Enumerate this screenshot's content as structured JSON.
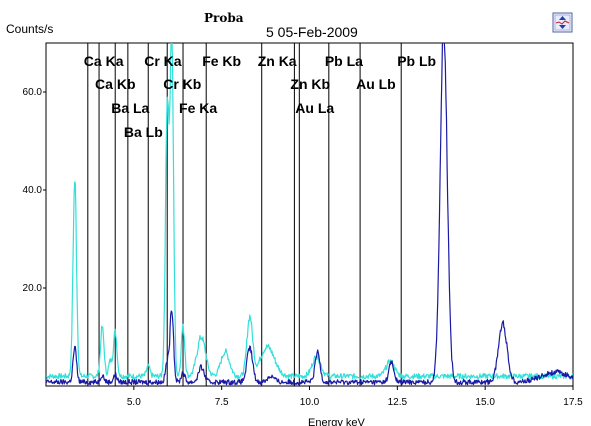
{
  "chart_data": {
    "type": "line",
    "title": "Proba",
    "subtitle": "5 05-Feb-2009",
    "ylabel": "Counts/s",
    "xlabel": "Energy keV",
    "xlim": [
      2.5,
      17.5
    ],
    "ylim": [
      0,
      70
    ],
    "x_ticks": [
      "5.0",
      "7.5",
      "10.0",
      "12.5",
      "15.0",
      "17.5"
    ],
    "x_tick_values": [
      5.0,
      7.5,
      10.0,
      12.5,
      15.0,
      17.5
    ],
    "y_ticks": [
      "20.0",
      "40.0",
      "60.0"
    ],
    "y_tick_values": [
      20,
      40,
      60
    ],
    "grid": false,
    "series": [
      {
        "color": "#33e0d8",
        "baseline": 2.0,
        "peaks": [
          {
            "x": 3.32,
            "height": 40,
            "width": 0.05
          },
          {
            "x": 4.1,
            "height": 10,
            "width": 0.05
          },
          {
            "x": 4.33,
            "height": 3,
            "width": 0.05
          },
          {
            "x": 4.47,
            "height": 9,
            "width": 0.05
          },
          {
            "x": 5.41,
            "height": 2,
            "width": 0.05
          },
          {
            "x": 5.95,
            "height": 55,
            "width": 0.05
          },
          {
            "x": 6.08,
            "height": 68,
            "width": 0.05
          },
          {
            "x": 6.4,
            "height": 10,
            "width": 0.05
          },
          {
            "x": 6.92,
            "height": 8,
            "width": 0.12
          },
          {
            "x": 7.6,
            "height": 5,
            "width": 0.12
          },
          {
            "x": 8.3,
            "height": 12,
            "width": 0.08
          },
          {
            "x": 8.8,
            "height": 6,
            "width": 0.2
          },
          {
            "x": 10.2,
            "height": 4,
            "width": 0.12
          },
          {
            "x": 12.3,
            "height": 3,
            "width": 0.12
          }
        ]
      },
      {
        "color": "#1a1aa6",
        "baseline": 0.8,
        "peaks": [
          {
            "x": 3.32,
            "height": 7,
            "width": 0.05
          },
          {
            "x": 4.1,
            "height": 1.5,
            "width": 0.05
          },
          {
            "x": 4.47,
            "height": 1.5,
            "width": 0.05
          },
          {
            "x": 5.95,
            "height": 4,
            "width": 0.05
          },
          {
            "x": 6.08,
            "height": 15,
            "width": 0.05
          },
          {
            "x": 6.4,
            "height": 2,
            "width": 0.05
          },
          {
            "x": 6.92,
            "height": 3,
            "width": 0.08
          },
          {
            "x": 8.3,
            "height": 7,
            "width": 0.08
          },
          {
            "x": 8.9,
            "height": 1.2,
            "width": 0.1
          },
          {
            "x": 10.23,
            "height": 6,
            "width": 0.07
          },
          {
            "x": 12.33,
            "height": 4,
            "width": 0.07
          },
          {
            "x": 13.82,
            "height": 72,
            "width": 0.1
          },
          {
            "x": 15.5,
            "height": 12,
            "width": 0.12
          },
          {
            "x": 17.0,
            "height": 2.0,
            "width": 0.4
          }
        ]
      }
    ],
    "element_lines": [
      {
        "label": "Ca Ka",
        "energy": 3.69
      },
      {
        "label": "Ca Kb",
        "energy": 4.01
      },
      {
        "label": "Ba La",
        "energy": 4.47
      },
      {
        "label": "Ba Lb",
        "energy": 4.83
      },
      {
        "label": "Cr Ka",
        "energy": 5.41
      },
      {
        "label": "Cr Kb",
        "energy": 5.95
      },
      {
        "label": "Fe Ka",
        "energy": 6.4
      },
      {
        "label": "Fe Kb",
        "energy": 7.06
      },
      {
        "label": "Zn Ka",
        "energy": 8.64
      },
      {
        "label": "Zn Kb",
        "energy": 9.57
      },
      {
        "label": "Au La",
        "energy": 9.71
      },
      {
        "label": "Au Lb",
        "energy": 11.44
      },
      {
        "label": "Pb La",
        "energy": 10.55
      },
      {
        "label": "Pb Lb",
        "energy": 12.61
      }
    ]
  }
}
